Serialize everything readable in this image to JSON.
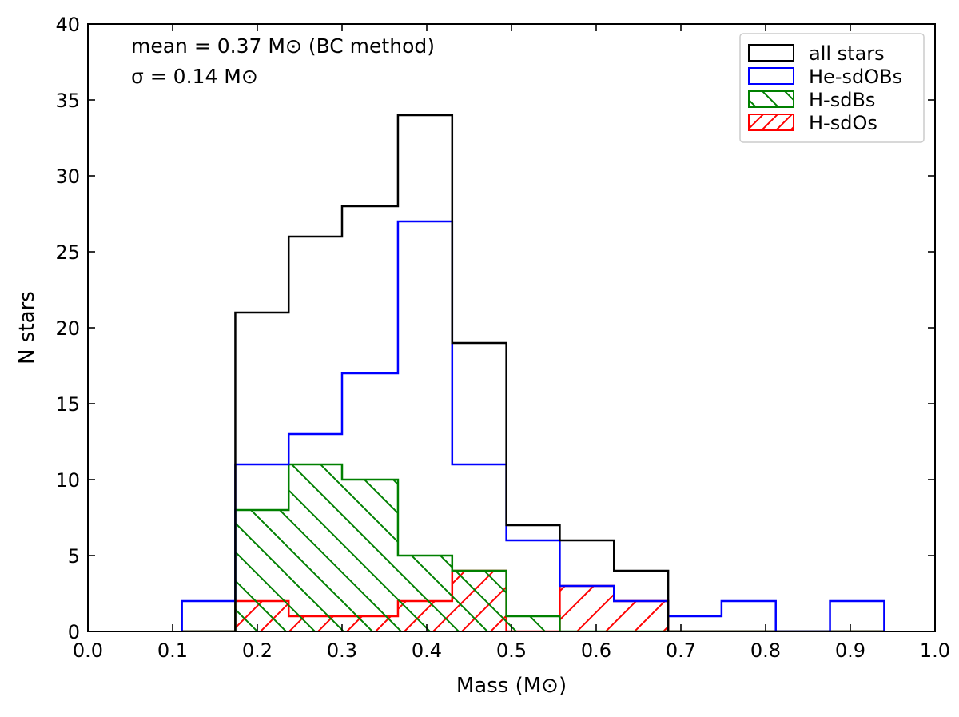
{
  "chart_data": {
    "type": "histogram",
    "xlabel": "Mass (M⊙)",
    "ylabel": "N stars",
    "xlim": [
      0.0,
      1.0
    ],
    "ylim": [
      0,
      40
    ],
    "x_ticks": [
      0.0,
      0.1,
      0.2,
      0.3,
      0.4,
      0.5,
      0.6,
      0.7,
      0.8,
      0.9,
      1.0
    ],
    "x_tick_labels": [
      "0.0",
      "0.1",
      "0.2",
      "0.3",
      "0.4",
      "0.5",
      "0.6",
      "0.7",
      "0.8",
      "0.9",
      "1.0"
    ],
    "y_ticks": [
      0,
      5,
      10,
      15,
      20,
      25,
      30,
      35,
      40
    ],
    "y_tick_labels": [
      "0",
      "5",
      "10",
      "15",
      "20",
      "25",
      "30",
      "35",
      "40"
    ],
    "annotations": [
      "mean = 0.37 M⊙ (BC method)",
      "σ = 0.14 M⊙"
    ],
    "legend_position": "top-right",
    "grid": false,
    "bin_edges": [
      0.111,
      0.174,
      0.237,
      0.3,
      0.366,
      0.43,
      0.494,
      0.557,
      0.621,
      0.685,
      0.748,
      0.812,
      0.876,
      0.94
    ],
    "series": [
      {
        "name": "all stars",
        "color": "#000000",
        "hatch": "none",
        "values": [
          0,
          21,
          26,
          28,
          34,
          19,
          7,
          6,
          4,
          0,
          0,
          0,
          0
        ]
      },
      {
        "name": "He-sdOBs",
        "color": "#0000ff",
        "hatch": "none",
        "values": [
          2,
          11,
          13,
          17,
          27,
          11,
          6,
          3,
          2,
          1,
          2,
          0,
          2
        ]
      },
      {
        "name": "H-sdBs",
        "color": "#008000",
        "hatch": "backslash",
        "values": [
          0,
          8,
          11,
          10,
          5,
          4,
          1,
          0,
          0,
          0,
          0,
          0,
          0
        ]
      },
      {
        "name": "H-sdOs",
        "color": "#ff0000",
        "hatch": "slash",
        "values": [
          0,
          2,
          1,
          1,
          2,
          4,
          0,
          3,
          2,
          0,
          0,
          0,
          0
        ]
      }
    ]
  }
}
